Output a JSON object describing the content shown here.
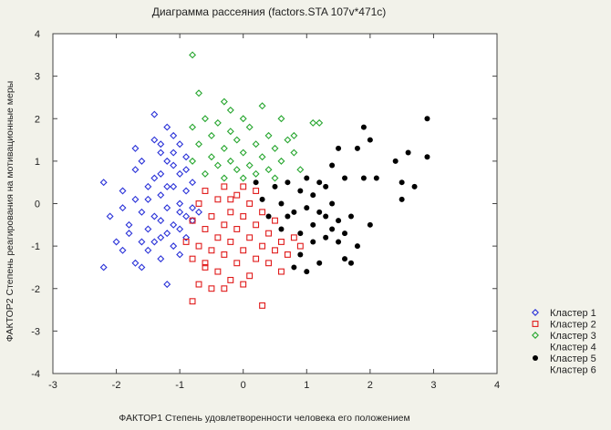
{
  "chart_data": {
    "type": "scatter",
    "title": "Диаграмма рассеяния (factors.STA 107v*471c)",
    "xlabel": "ФАКТОР1  Степень удовлетворенности человека его положением",
    "ylabel": "ФАКТОР2  Степень реагирования на мотивационные меры",
    "xlim": [
      -3,
      4
    ],
    "ylim": [
      -4,
      4
    ],
    "xticks": [
      "-3",
      "-2",
      "-1",
      "0",
      "1",
      "2",
      "3",
      "4"
    ],
    "yticks": [
      "4",
      "3",
      "2",
      "1",
      "0",
      "-1",
      "-2",
      "-3",
      "-4"
    ],
    "grid": false,
    "legend_position": "bottom-right",
    "series": [
      {
        "name": "Кластер 1",
        "marker": "diamond-open",
        "color": "#2a32d8",
        "points": [
          [
            -2.2,
            -1.5
          ],
          [
            -2.1,
            -0.3
          ],
          [
            -2.0,
            -0.9
          ],
          [
            -1.9,
            0.3
          ],
          [
            -1.9,
            -1.1
          ],
          [
            -1.8,
            -0.5
          ],
          [
            -1.8,
            -0.7
          ],
          [
            -1.7,
            0.1
          ],
          [
            -1.7,
            -1.4
          ],
          [
            -1.6,
            -0.2
          ],
          [
            -1.6,
            -1.5
          ],
          [
            -1.5,
            0.4
          ],
          [
            -1.5,
            -0.6
          ],
          [
            -1.5,
            -1.1
          ],
          [
            -1.4,
            1.5
          ],
          [
            -1.4,
            0.6
          ],
          [
            -1.4,
            -0.3
          ],
          [
            -1.4,
            -0.9
          ],
          [
            -1.3,
            1.2
          ],
          [
            -1.3,
            0.7
          ],
          [
            -1.3,
            0.2
          ],
          [
            -1.3,
            -0.4
          ],
          [
            -1.3,
            -0.8
          ],
          [
            -1.3,
            -1.3
          ],
          [
            -1.2,
            1.8
          ],
          [
            -1.2,
            1.0
          ],
          [
            -1.2,
            -0.1
          ],
          [
            -1.2,
            -0.7
          ],
          [
            -1.1,
            1.6
          ],
          [
            -1.1,
            0.9
          ],
          [
            -1.1,
            0.4
          ],
          [
            -1.1,
            -0.5
          ],
          [
            -1.1,
            -1.0
          ],
          [
            -1.0,
            1.4
          ],
          [
            -1.0,
            0.7
          ],
          [
            -1.0,
            -0.2
          ],
          [
            -1.0,
            -0.6
          ],
          [
            -1.0,
            -1.2
          ],
          [
            -0.9,
            0.8
          ],
          [
            -0.9,
            0.3
          ],
          [
            -0.9,
            -0.3
          ],
          [
            -0.9,
            -0.8
          ],
          [
            -0.8,
            0.5
          ],
          [
            -0.8,
            -0.1
          ],
          [
            -0.8,
            -0.4
          ],
          [
            -1.4,
            2.1
          ],
          [
            -1.6,
            1.0
          ],
          [
            -1.7,
            0.8
          ],
          [
            -1.2,
            0.4
          ],
          [
            -1.0,
            0.0
          ],
          [
            -1.5,
            0.1
          ],
          [
            -1.1,
            1.2
          ],
          [
            -0.9,
            1.1
          ],
          [
            -1.6,
            -0.9
          ],
          [
            -1.2,
            -1.9
          ],
          [
            -1.7,
            1.3
          ],
          [
            -2.2,
            0.5
          ],
          [
            -1.9,
            -0.1
          ],
          [
            -1.3,
            1.4
          ],
          [
            -0.7,
            -0.2
          ]
        ]
      },
      {
        "name": "Кластер 2",
        "marker": "square-open",
        "color": "#e01a1a",
        "points": [
          [
            -0.9,
            -0.9
          ],
          [
            -0.8,
            -2.3
          ],
          [
            -0.8,
            -1.3
          ],
          [
            -0.8,
            -0.4
          ],
          [
            -0.7,
            -1.9
          ],
          [
            -0.7,
            -1.0
          ],
          [
            -0.7,
            0.0
          ],
          [
            -0.6,
            -1.5
          ],
          [
            -0.6,
            -0.6
          ],
          [
            -0.6,
            0.3
          ],
          [
            -0.5,
            -2.0
          ],
          [
            -0.5,
            -1.1
          ],
          [
            -0.5,
            -0.3
          ],
          [
            -0.4,
            -1.6
          ],
          [
            -0.4,
            -0.8
          ],
          [
            -0.4,
            0.1
          ],
          [
            -0.3,
            -1.2
          ],
          [
            -0.3,
            -0.5
          ],
          [
            -0.3,
            0.4
          ],
          [
            -0.2,
            -1.8
          ],
          [
            -0.2,
            -0.9
          ],
          [
            -0.2,
            -0.2
          ],
          [
            -0.1,
            -1.4
          ],
          [
            -0.1,
            -0.6
          ],
          [
            -0.1,
            0.2
          ],
          [
            0.0,
            -1.1
          ],
          [
            0.0,
            -0.3
          ],
          [
            0.0,
            0.4
          ],
          [
            0.1,
            -1.7
          ],
          [
            0.1,
            -0.8
          ],
          [
            0.1,
            0.0
          ],
          [
            0.2,
            -1.3
          ],
          [
            0.2,
            -0.5
          ],
          [
            0.2,
            0.3
          ],
          [
            0.3,
            -1.0
          ],
          [
            0.3,
            -0.2
          ],
          [
            0.4,
            -1.4
          ],
          [
            0.4,
            -0.7
          ],
          [
            0.5,
            -1.1
          ],
          [
            0.5,
            -0.4
          ],
          [
            0.6,
            -0.9
          ],
          [
            0.7,
            -1.2
          ],
          [
            0.8,
            -0.8
          ],
          [
            0.3,
            -2.4
          ],
          [
            -0.3,
            -2.0
          ],
          [
            -0.6,
            -1.4
          ],
          [
            0.0,
            -1.9
          ],
          [
            0.6,
            -1.6
          ],
          [
            0.9,
            -1.0
          ],
          [
            -0.2,
            0.1
          ]
        ]
      },
      {
        "name": "Кластер 3",
        "marker": "diamond-open",
        "color": "#27a62f",
        "points": [
          [
            -0.8,
            3.5
          ],
          [
            -0.8,
            1.8
          ],
          [
            -0.8,
            1.0
          ],
          [
            -0.7,
            2.6
          ],
          [
            -0.7,
            1.4
          ],
          [
            -0.6,
            2.0
          ],
          [
            -0.6,
            0.7
          ],
          [
            -0.5,
            1.6
          ],
          [
            -0.5,
            1.1
          ],
          [
            -0.4,
            1.9
          ],
          [
            -0.4,
            0.9
          ],
          [
            -0.3,
            2.4
          ],
          [
            -0.3,
            1.3
          ],
          [
            -0.3,
            0.6
          ],
          [
            -0.2,
            2.2
          ],
          [
            -0.2,
            1.7
          ],
          [
            -0.2,
            1.0
          ],
          [
            -0.1,
            1.5
          ],
          [
            -0.1,
            0.8
          ],
          [
            0.0,
            2.0
          ],
          [
            0.0,
            1.2
          ],
          [
            0.0,
            0.6
          ],
          [
            0.1,
            1.8
          ],
          [
            0.1,
            0.9
          ],
          [
            0.2,
            1.4
          ],
          [
            0.2,
            0.7
          ],
          [
            0.3,
            2.3
          ],
          [
            0.3,
            1.1
          ],
          [
            0.4,
            1.6
          ],
          [
            0.4,
            0.8
          ],
          [
            0.5,
            1.3
          ],
          [
            0.5,
            0.6
          ],
          [
            0.6,
            2.0
          ],
          [
            0.6,
            1.0
          ],
          [
            0.7,
            1.5
          ],
          [
            0.8,
            1.2
          ],
          [
            0.9,
            0.8
          ],
          [
            1.1,
            1.9
          ],
          [
            1.2,
            1.9
          ],
          [
            0.8,
            1.6
          ]
        ]
      },
      {
        "name": "Кластер 4",
        "marker": "none",
        "color": "#222222",
        "points": []
      },
      {
        "name": "Кластер 5",
        "marker": "circle-filled",
        "color": "#000000",
        "points": [
          [
            0.2,
            0.5
          ],
          [
            0.3,
            0.1
          ],
          [
            0.4,
            -0.3
          ],
          [
            0.5,
            0.4
          ],
          [
            0.6,
            0.0
          ],
          [
            0.6,
            -0.6
          ],
          [
            0.7,
            0.5
          ],
          [
            0.8,
            -0.2
          ],
          [
            0.8,
            -1.5
          ],
          [
            0.9,
            0.3
          ],
          [
            0.9,
            -0.7
          ],
          [
            1.0,
            0.6
          ],
          [
            1.0,
            -0.1
          ],
          [
            1.0,
            -1.6
          ],
          [
            1.1,
            0.2
          ],
          [
            1.1,
            -0.5
          ],
          [
            1.2,
            0.5
          ],
          [
            1.2,
            -0.2
          ],
          [
            1.2,
            -1.4
          ],
          [
            1.3,
            0.4
          ],
          [
            1.3,
            -0.3
          ],
          [
            1.3,
            -0.8
          ],
          [
            1.4,
            0.9
          ],
          [
            1.4,
            0.0
          ],
          [
            1.4,
            -0.6
          ],
          [
            1.5,
            1.3
          ],
          [
            1.5,
            -0.4
          ],
          [
            1.5,
            -0.9
          ],
          [
            1.6,
            0.6
          ],
          [
            1.6,
            -0.7
          ],
          [
            1.7,
            -0.3
          ],
          [
            1.7,
            -1.4
          ],
          [
            1.8,
            1.3
          ],
          [
            1.8,
            -1.0
          ],
          [
            1.9,
            1.8
          ],
          [
            1.9,
            0.6
          ],
          [
            2.0,
            1.5
          ],
          [
            2.0,
            -0.5
          ],
          [
            2.1,
            0.6
          ],
          [
            2.4,
            1.0
          ],
          [
            2.5,
            0.5
          ],
          [
            2.5,
            0.1
          ],
          [
            2.6,
            1.2
          ],
          [
            2.7,
            0.4
          ],
          [
            2.9,
            2.0
          ],
          [
            2.9,
            1.1
          ],
          [
            1.6,
            -1.3
          ],
          [
            0.9,
            -1.2
          ],
          [
            1.1,
            -0.9
          ],
          [
            0.7,
            -0.3
          ]
        ]
      },
      {
        "name": "Кластер 6",
        "marker": "none",
        "color": "#222222",
        "points": []
      }
    ]
  }
}
